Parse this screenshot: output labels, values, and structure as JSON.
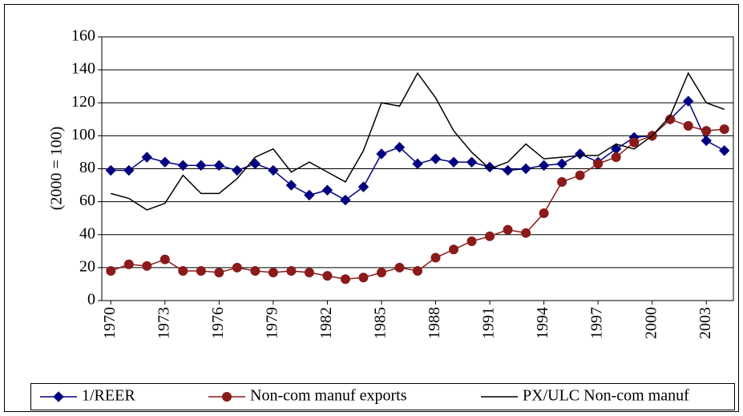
{
  "chart_data": {
    "type": "line",
    "y_label": "(2000 = 100)",
    "x": [
      1970,
      1971,
      1972,
      1973,
      1974,
      1975,
      1976,
      1977,
      1978,
      1979,
      1980,
      1981,
      1982,
      1983,
      1984,
      1985,
      1986,
      1987,
      1988,
      1989,
      1990,
      1991,
      1992,
      1993,
      1994,
      1995,
      1996,
      1997,
      1998,
      1999,
      2000,
      2001,
      2002,
      2003,
      2004
    ],
    "xlim": [
      1969.5,
      2004.5
    ],
    "xticks": [
      1970,
      1973,
      1976,
      1979,
      1982,
      1985,
      1988,
      1991,
      1994,
      1997,
      2000,
      2003
    ],
    "ylim": [
      0,
      160
    ],
    "yticks": [
      0,
      20,
      40,
      60,
      80,
      100,
      120,
      140,
      160
    ],
    "grid": true,
    "legend": "bottom",
    "series": [
      {
        "name": "1/REER",
        "color": "#000080",
        "marker": "diamond",
        "values": [
          79,
          79,
          87,
          84,
          82,
          82,
          82,
          79,
          83,
          79,
          70,
          64,
          67,
          61,
          69,
          89,
          93,
          83,
          86,
          84,
          84,
          81,
          79,
          80,
          82,
          83,
          89,
          84,
          92,
          99,
          100,
          110,
          121,
          97,
          91
        ]
      },
      {
        "name": "Non-com manuf exports",
        "color": "#8b1a1a",
        "marker": "circle",
        "values": [
          18,
          22,
          21,
          25,
          18,
          18,
          17,
          20,
          18,
          17,
          18,
          17,
          15,
          13,
          14,
          17,
          20,
          18,
          26,
          31,
          36,
          39,
          43,
          41,
          53,
          72,
          76,
          83,
          87,
          96,
          100,
          110,
          106,
          103,
          104
        ]
      },
      {
        "name": "PX/ULC Non-com manuf",
        "color": "#000000",
        "marker": "none",
        "values": [
          65,
          62,
          55,
          59,
          76,
          65,
          65,
          74,
          87,
          92,
          78,
          84,
          78,
          72,
          91,
          120,
          118,
          138,
          123,
          103,
          90,
          80,
          84,
          95,
          86,
          87,
          88,
          88,
          95,
          92,
          100,
          112,
          138,
          120,
          116
        ]
      }
    ]
  }
}
